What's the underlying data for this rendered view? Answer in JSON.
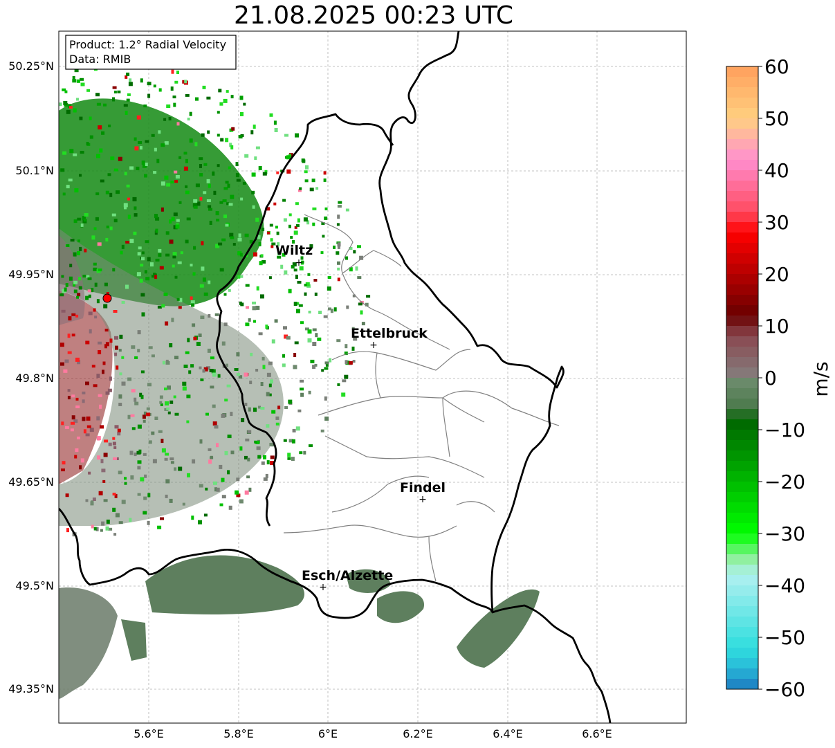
{
  "title": "21.08.2025 00:23 UTC",
  "product_line": "Product: 1.2° Radial Velocity",
  "data_line": "Data: RMIB",
  "lat_labels": [
    "50.25°N",
    "50.1°N",
    "49.95°N",
    "49.8°N",
    "49.65°N",
    "49.5°N",
    "49.35°N"
  ],
  "lon_labels": [
    "5.6°E",
    "5.8°E",
    "6°E",
    "6.2°E",
    "6.4°E",
    "6.6°E"
  ],
  "cities": [
    {
      "name": "Wiltz"
    },
    {
      "name": "Ettelbruck"
    },
    {
      "name": "Findel"
    },
    {
      "name": "Esch/Alzette"
    }
  ],
  "colorbar": {
    "label": "m/s",
    "ticks": [
      "60",
      "50",
      "40",
      "30",
      "20",
      "10",
      "0",
      "−10",
      "−20",
      "−30",
      "−40",
      "−50",
      "−60"
    ],
    "stops": [
      {
        "value": 60,
        "color": "#ff9f5c"
      },
      {
        "value": 50,
        "color": "#ffd080"
      },
      {
        "value": 42,
        "color": "#ff8fd0"
      },
      {
        "value": 32,
        "color": "#ff4a60"
      },
      {
        "value": 28,
        "color": "#ff0000"
      },
      {
        "value": 12,
        "color": "#6a0000"
      },
      {
        "value": 8,
        "color": "#8a4850"
      },
      {
        "value": 1,
        "color": "#857878"
      },
      {
        "value": -1,
        "color": "#6a8a6a"
      },
      {
        "value": -6,
        "color": "#4a784a"
      },
      {
        "value": -8,
        "color": "#006400"
      },
      {
        "value": -30,
        "color": "#00ff00"
      },
      {
        "value": -35,
        "color": "#90f0a0"
      },
      {
        "value": -38,
        "color": "#b0f0f0"
      },
      {
        "value": -52,
        "color": "#30dede"
      },
      {
        "value": -56,
        "color": "#28b8d8"
      },
      {
        "value": -60,
        "color": "#1c78c0"
      }
    ]
  },
  "colors": {
    "border": "#000000",
    "district": "#808080",
    "grid": "#b0b0b0",
    "radar_site": "#ff0000"
  }
}
